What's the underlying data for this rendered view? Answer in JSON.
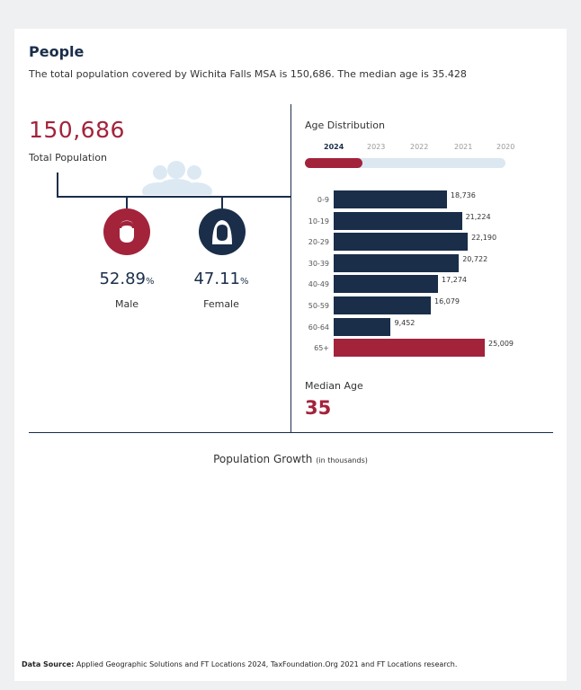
{
  "header": {
    "title": "People",
    "subtitle": "The total population covered by Wichita Falls MSA is 150,686. The median age is 35.428"
  },
  "population": {
    "value": "150,686",
    "label": "Total Population"
  },
  "gender": {
    "male": {
      "value": "52.89",
      "unit": "%",
      "label": "Male",
      "color": "#a3233b"
    },
    "female": {
      "value": "47.11",
      "unit": "%",
      "label": "Female",
      "color": "#1a2e4a"
    }
  },
  "age_distribution": {
    "title": "Age Distribution",
    "years": [
      "2024",
      "2023",
      "2022",
      "2021",
      "2020"
    ],
    "selected_year": "2024"
  },
  "chart_data": {
    "type": "bar",
    "orientation": "horizontal",
    "categories": [
      "0-9",
      "10-19",
      "20-29",
      "30-39",
      "40-49",
      "50-59",
      "60-64",
      "65+"
    ],
    "values": [
      18736,
      21224,
      22190,
      20722,
      17274,
      16079,
      9452,
      25009
    ],
    "value_labels": [
      "18,736",
      "21,224",
      "22,190",
      "20,722",
      "17,274",
      "16,079",
      "9,452",
      "25,009"
    ],
    "colors": [
      "#1a2e4a",
      "#1a2e4a",
      "#1a2e4a",
      "#1a2e4a",
      "#1a2e4a",
      "#1a2e4a",
      "#1a2e4a",
      "#a3233b"
    ],
    "xlim": [
      0,
      25009
    ],
    "grid": false
  },
  "median_age": {
    "label": "Median Age",
    "value": "35"
  },
  "growth": {
    "title": "Population Growth",
    "subtitle": "(in thousands)"
  },
  "source": {
    "label": "Data Source:",
    "text": "Applied Geographic Solutions and FT Locations 2024, TaxFoundation.Org 2021 and FT Locations research."
  }
}
